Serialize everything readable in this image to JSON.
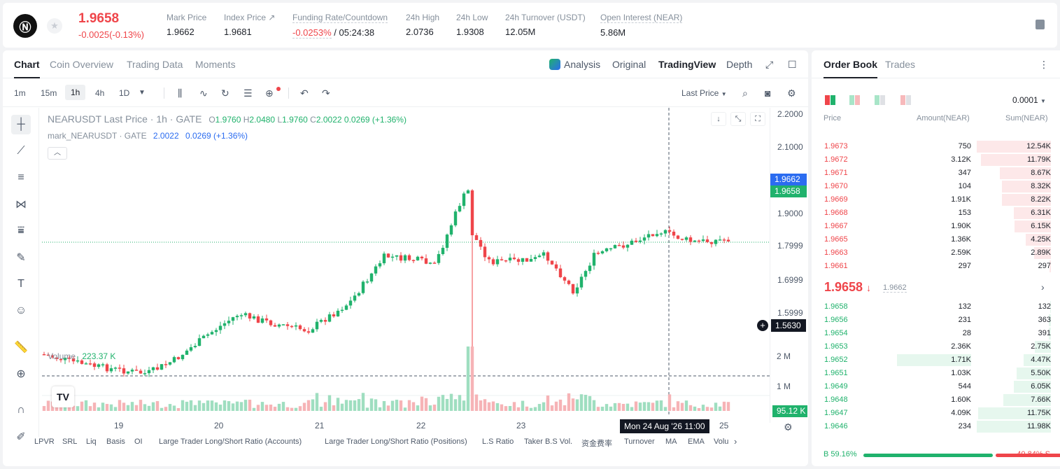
{
  "header": {
    "last_price": "1.9658",
    "change": "-0.0025(-0.13%)",
    "stats": [
      {
        "label": "Mark Price",
        "value": "1.9662"
      },
      {
        "label": "Index Price ↗",
        "value": "1.9681"
      },
      {
        "label": "Funding Rate/Countdown",
        "value_red": "-0.0253%",
        "value": " / 05:24:38"
      },
      {
        "label": "24h High",
        "value": "2.0736"
      },
      {
        "label": "24h Low",
        "value": "1.9308"
      },
      {
        "label": "24h Turnover (USDT)",
        "value": "12.05M"
      },
      {
        "label": "Open Interest (NEAR)",
        "value": "5.86M"
      }
    ]
  },
  "chart_tabs": [
    "Chart",
    "Coin Overview",
    "Trading Data",
    "Moments"
  ],
  "view_tabs": [
    "Analysis",
    "Original",
    "TradingView",
    "Depth"
  ],
  "timeframes": [
    "1m",
    "15m",
    "1h",
    "4h",
    "1D"
  ],
  "price_source": "Last Price",
  "legend": {
    "symbol": "NEARUSDT Last Price · 1h · GATE",
    "o_label": "O",
    "o": "1.9760",
    "h_label": "H",
    "h": "2.0480",
    "l_label": "L",
    "l": "1.9760",
    "c_label": "C",
    "c": "2.0022",
    "chg": "0.0269 (+1.36%)",
    "mark_symbol": "mark_NEARUSDT · GATE",
    "mark_value": "2.0022",
    "mark_chg": "0.0269 (+1.36%)"
  },
  "volume": {
    "label": "Volume",
    "value": "223.37 K",
    "ticks": [
      "2 M",
      "1 M"
    ],
    "badge": "95.12 K"
  },
  "price_ticks": [
    "2.2000",
    "2.1000",
    "1.9000",
    "1.7999",
    "1.6999",
    "1.5999"
  ],
  "price_labels": {
    "mark": "1.9662",
    "last": "1.9658",
    "crosshair": "1.5630"
  },
  "time_ticks": [
    "19",
    "20",
    "21",
    "22",
    "23",
    "25"
  ],
  "crosshair_time": "Mon 24 Aug '26  11:00",
  "indicators": [
    "LPVR",
    "SRL",
    "Liq",
    "Basis",
    "OI",
    "Large Trader Long/Short Ratio (Accounts)",
    "Large Trader Long/Short Ratio (Positions)",
    "L.S Ratio",
    "Taker B.S Vol.",
    "资金费率",
    "Turnover",
    "MA",
    "EMA",
    "Volu"
  ],
  "order_book": {
    "tabs": [
      "Order Book",
      "Trades"
    ],
    "precision": "0.0001",
    "headers": [
      "Price",
      "Amount(NEAR)",
      "Sum(NEAR)"
    ],
    "asks": [
      {
        "price": "1.9673",
        "amount": "750",
        "sum": "12.54K",
        "depth": 1.0
      },
      {
        "price": "1.9672",
        "amount": "3.12K",
        "sum": "11.79K",
        "depth": 0.94
      },
      {
        "price": "1.9671",
        "amount": "347",
        "sum": "8.67K",
        "depth": 0.69
      },
      {
        "price": "1.9670",
        "amount": "104",
        "sum": "8.32K",
        "depth": 0.66
      },
      {
        "price": "1.9669",
        "amount": "1.91K",
        "sum": "8.22K",
        "depth": 0.66
      },
      {
        "price": "1.9668",
        "amount": "153",
        "sum": "6.31K",
        "depth": 0.5
      },
      {
        "price": "1.9667",
        "amount": "1.90K",
        "sum": "6.15K",
        "depth": 0.49
      },
      {
        "price": "1.9665",
        "amount": "1.36K",
        "sum": "4.25K",
        "depth": 0.34
      },
      {
        "price": "1.9663",
        "amount": "2.59K",
        "sum": "2.89K",
        "depth": 0.23
      },
      {
        "price": "1.9661",
        "amount": "297",
        "sum": "297",
        "depth": 0.02
      }
    ],
    "mid_price": "1.9658",
    "mid_arrow": "↓",
    "mid_mark": "1.9662",
    "bids": [
      {
        "price": "1.9658",
        "amount": "132",
        "sum": "132",
        "depth": 0.01,
        "highlight": false
      },
      {
        "price": "1.9656",
        "amount": "231",
        "sum": "363",
        "depth": 0.03,
        "highlight": false
      },
      {
        "price": "1.9654",
        "amount": "28",
        "sum": "391",
        "depth": 0.03,
        "highlight": false
      },
      {
        "price": "1.9653",
        "amount": "2.36K",
        "sum": "2.75K",
        "depth": 0.22,
        "highlight": false
      },
      {
        "price": "1.9652",
        "amount": "1.71K",
        "sum": "4.47K",
        "depth": 0.37,
        "highlight": true
      },
      {
        "price": "1.9651",
        "amount": "1.03K",
        "sum": "5.50K",
        "depth": 0.46,
        "highlight": false
      },
      {
        "price": "1.9649",
        "amount": "544",
        "sum": "6.05K",
        "depth": 0.5,
        "highlight": false
      },
      {
        "price": "1.9648",
        "amount": "1.60K",
        "sum": "7.66K",
        "depth": 0.64,
        "highlight": false
      },
      {
        "price": "1.9647",
        "amount": "4.09K",
        "sum": "11.75K",
        "depth": 0.98,
        "highlight": false
      },
      {
        "price": "1.9646",
        "amount": "234",
        "sum": "11.98K",
        "depth": 1.0,
        "highlight": false
      }
    ],
    "buy_ratio": "B 59.16%",
    "sell_ratio": "40.84% S",
    "buy_fraction": 0.5916
  },
  "colors": {
    "up": "#20b26c",
    "down": "#ef454a",
    "mark": "#2b6cf0"
  }
}
